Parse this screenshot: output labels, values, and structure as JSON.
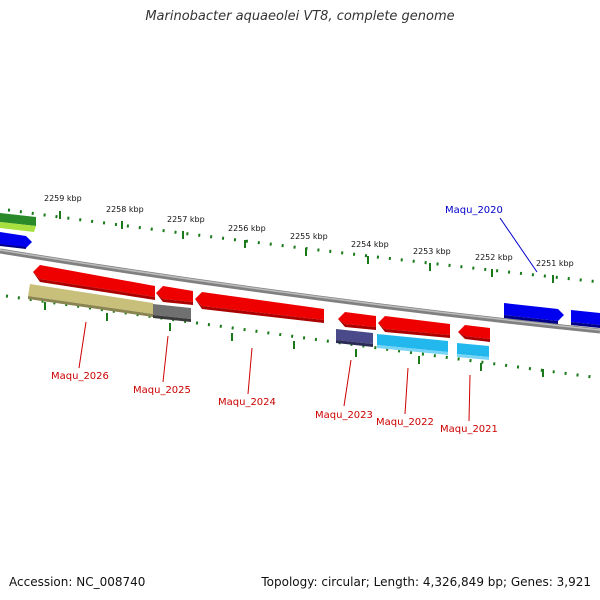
{
  "title": "Marinobacter aquaeolei VT8, complete genome",
  "footer": {
    "accession": "Accession: NC_008740",
    "summary": "Topology: circular; Length: 4,326,849 bp; Genes: 3,921"
  },
  "ticks": [
    "2259 kbp",
    "2258 kbp",
    "2257 kbp",
    "2256 kbp",
    "2255 kbp",
    "2254 kbp",
    "2253 kbp",
    "2252 kbp",
    "2251 kbp"
  ],
  "gene_labels": [
    {
      "text": "Maqu_2020",
      "color": "#0000cc"
    },
    {
      "text": "Maqu_2026",
      "color": "#cc0000"
    },
    {
      "text": "Maqu_2025",
      "color": "#cc0000"
    },
    {
      "text": "Maqu_2024",
      "color": "#cc0000"
    },
    {
      "text": "Maqu_2023",
      "color": "#cc0000"
    },
    {
      "text": "Maqu_2022",
      "color": "#cc0000"
    },
    {
      "text": "Maqu_2021",
      "color": "#cc0000"
    }
  ],
  "colors": {
    "backbone": "#808080",
    "tick": "#1a7a1a",
    "forward_gene": "#0000ee",
    "reverse_gene": "#ee0000",
    "cds_olive": "#c8c07a",
    "cds_gray": "#707070",
    "cds_purple": "#4a4a8a",
    "cds_cyan": "#22b8ee",
    "green_feature": "#2a8a2a",
    "lime_feature": "#a8e040"
  }
}
